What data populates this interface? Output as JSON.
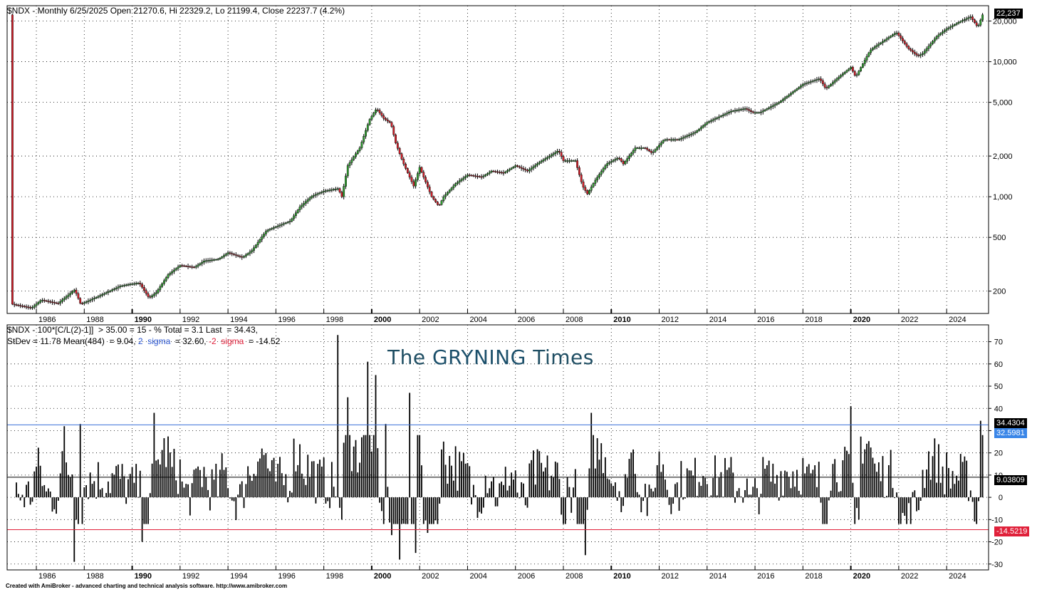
{
  "chart_data": [
    {
      "type": "candlestick",
      "title": "$NDX - Monthly 6/25/2025 Open 21270.6, Hi 22329.2, Lo 21199.4, Close 22237.7 (4.2%)",
      "y_scale": "log",
      "ylim": [
        140,
        23000
      ],
      "y_ticks": [
        200,
        500,
        1000,
        2000,
        5000,
        10000,
        20000
      ],
      "y_tick_labels": [
        "200",
        "500",
        "1,000",
        "2,000",
        "5,000",
        "10,000",
        "20,000"
      ],
      "x_ticks": [
        "1986",
        "1988",
        "1990",
        "1992",
        "1994",
        "1996",
        "1998",
        "2000",
        "2002",
        "2004",
        "2006",
        "2008",
        "2010",
        "2012",
        "2014",
        "2016",
        "2018",
        "2020",
        "2022",
        "2024"
      ],
      "last_value_label": "22,237",
      "grid": true,
      "anchors": [
        [
          1985.0,
          160
        ],
        [
          1985.8,
          150
        ],
        [
          1986.2,
          172
        ],
        [
          1986.9,
          162
        ],
        [
          1987.6,
          205
        ],
        [
          1987.85,
          160
        ],
        [
          1988.5,
          180
        ],
        [
          1989.5,
          218
        ],
        [
          1989.9,
          225
        ],
        [
          1990.3,
          230
        ],
        [
          1990.7,
          178
        ],
        [
          1991.0,
          195
        ],
        [
          1991.5,
          265
        ],
        [
          1992.0,
          310
        ],
        [
          1992.6,
          300
        ],
        [
          1993.0,
          335
        ],
        [
          1993.6,
          345
        ],
        [
          1994.0,
          385
        ],
        [
          1994.6,
          355
        ],
        [
          1995.0,
          400
        ],
        [
          1995.6,
          560
        ],
        [
          1996.0,
          600
        ],
        [
          1996.6,
          660
        ],
        [
          1997.0,
          840
        ],
        [
          1997.5,
          1010
        ],
        [
          1998.0,
          1100
        ],
        [
          1998.6,
          1150
        ],
        [
          1998.75,
          1000
        ],
        [
          1999.0,
          1700
        ],
        [
          1999.5,
          2300
        ],
        [
          1999.9,
          3700
        ],
        [
          2000.2,
          4500
        ],
        [
          2000.5,
          3800
        ],
        [
          2000.8,
          3500
        ],
        [
          2001.0,
          2500
        ],
        [
          2001.3,
          1800
        ],
        [
          2001.75,
          1200
        ],
        [
          2002.0,
          1650
        ],
        [
          2002.5,
          1000
        ],
        [
          2002.8,
          850
        ],
        [
          2003.0,
          1000
        ],
        [
          2003.5,
          1250
        ],
        [
          2004.0,
          1450
        ],
        [
          2004.6,
          1400
        ],
        [
          2005.0,
          1550
        ],
        [
          2005.5,
          1500
        ],
        [
          2006.0,
          1700
        ],
        [
          2006.5,
          1550
        ],
        [
          2007.0,
          1800
        ],
        [
          2007.8,
          2200
        ],
        [
          2008.0,
          1850
        ],
        [
          2008.5,
          1850
        ],
        [
          2008.8,
          1200
        ],
        [
          2009.0,
          1050
        ],
        [
          2009.3,
          1300
        ],
        [
          2009.8,
          1750
        ],
        [
          2010.3,
          1950
        ],
        [
          2010.5,
          1750
        ],
        [
          2011.0,
          2300
        ],
        [
          2011.4,
          2300
        ],
        [
          2011.7,
          2100
        ],
        [
          2012.2,
          2650
        ],
        [
          2012.8,
          2650
        ],
        [
          2013.5,
          3000
        ],
        [
          2014.0,
          3550
        ],
        [
          2015.0,
          4300
        ],
        [
          2015.6,
          4500
        ],
        [
          2015.9,
          4200
        ],
        [
          2016.2,
          4200
        ],
        [
          2017.0,
          5000
        ],
        [
          2018.0,
          6800
        ],
        [
          2018.7,
          7500
        ],
        [
          2018.95,
          6300
        ],
        [
          2019.5,
          7700
        ],
        [
          2020.0,
          9100
        ],
        [
          2020.2,
          7700
        ],
        [
          2020.8,
          12100
        ],
        [
          2021.0,
          12900
        ],
        [
          2021.9,
          16500
        ],
        [
          2022.4,
          12500
        ],
        [
          2022.8,
          11000
        ],
        [
          2023.0,
          11500
        ],
        [
          2023.6,
          15500
        ],
        [
          2024.0,
          17500
        ],
        [
          2024.6,
          20000
        ],
        [
          2025.0,
          21500
        ],
        [
          2025.3,
          18000
        ],
        [
          2025.5,
          22237.7
        ]
      ]
    },
    {
      "type": "bar",
      "title_line1": "$NDX - 100*[C/L(2)-1]]  > 35.00 = 15 - % Total = 3.1 Last  = 34.43,",
      "title_line2": "StDev = 11.78 Mean(484)  = 9.04, 2  sigma  = 32.60, -2  sigma  = -14.52",
      "ylim": [
        -32,
        75
      ],
      "y_ticks": [
        70,
        60,
        50,
        40,
        30,
        20,
        10,
        0,
        -10,
        -20,
        -30
      ],
      "x_ticks": [
        "1986",
        "1988",
        "1990",
        "1992",
        "1994",
        "1996",
        "1998",
        "2000",
        "2002",
        "2004",
        "2006",
        "2008",
        "2010",
        "2012",
        "2014",
        "2016",
        "2018",
        "2020",
        "2022",
        "2024"
      ],
      "grid": true,
      "reference_lines": [
        {
          "name": "mean",
          "value": 9.03809,
          "color": "#000000",
          "label": "9.03809"
        },
        {
          "name": "+2 sigma",
          "value": 32.5981,
          "color": "#3a6fd8",
          "label": "32.5981"
        },
        {
          "name": "-2 sigma",
          "value": -14.5219,
          "color": "#e0203a",
          "label": "-14.5219"
        }
      ],
      "last_value": 34.4304,
      "last_value_label": "34.4304",
      "notable_bars": [
        [
          1987.6,
          -29
        ],
        [
          1987.2,
          32
        ],
        [
          1987.8,
          33
        ],
        [
          1990.9,
          38
        ],
        [
          1990.4,
          -20
        ],
        [
          1998.6,
          73
        ],
        [
          1999.0,
          45
        ],
        [
          1999.85,
          61
        ],
        [
          2000.2,
          55
        ],
        [
          2000.6,
          33
        ],
        [
          2000.8,
          -17
        ],
        [
          2001.2,
          -28
        ],
        [
          2001.6,
          47
        ],
        [
          2001.8,
          -25
        ],
        [
          2002.3,
          -16
        ],
        [
          2008.9,
          -26
        ],
        [
          2009.2,
          38
        ],
        [
          2020.0,
          41
        ],
        [
          2020.3,
          -10
        ],
        [
          2025.4,
          34.43
        ]
      ]
    }
  ],
  "watermark": "The GRYNING Times",
  "watermark_prefix": "The",
  "watermark_brand": "GRYNING",
  "watermark_suffix": "Times",
  "footer": "Created with AmiBroker - advanced charting and technical analysis software. http://www.amibroker.com",
  "colors": {
    "up": "#2f9a2f",
    "down": "#d0202a",
    "bar": "#000000",
    "grid": "#000000"
  }
}
